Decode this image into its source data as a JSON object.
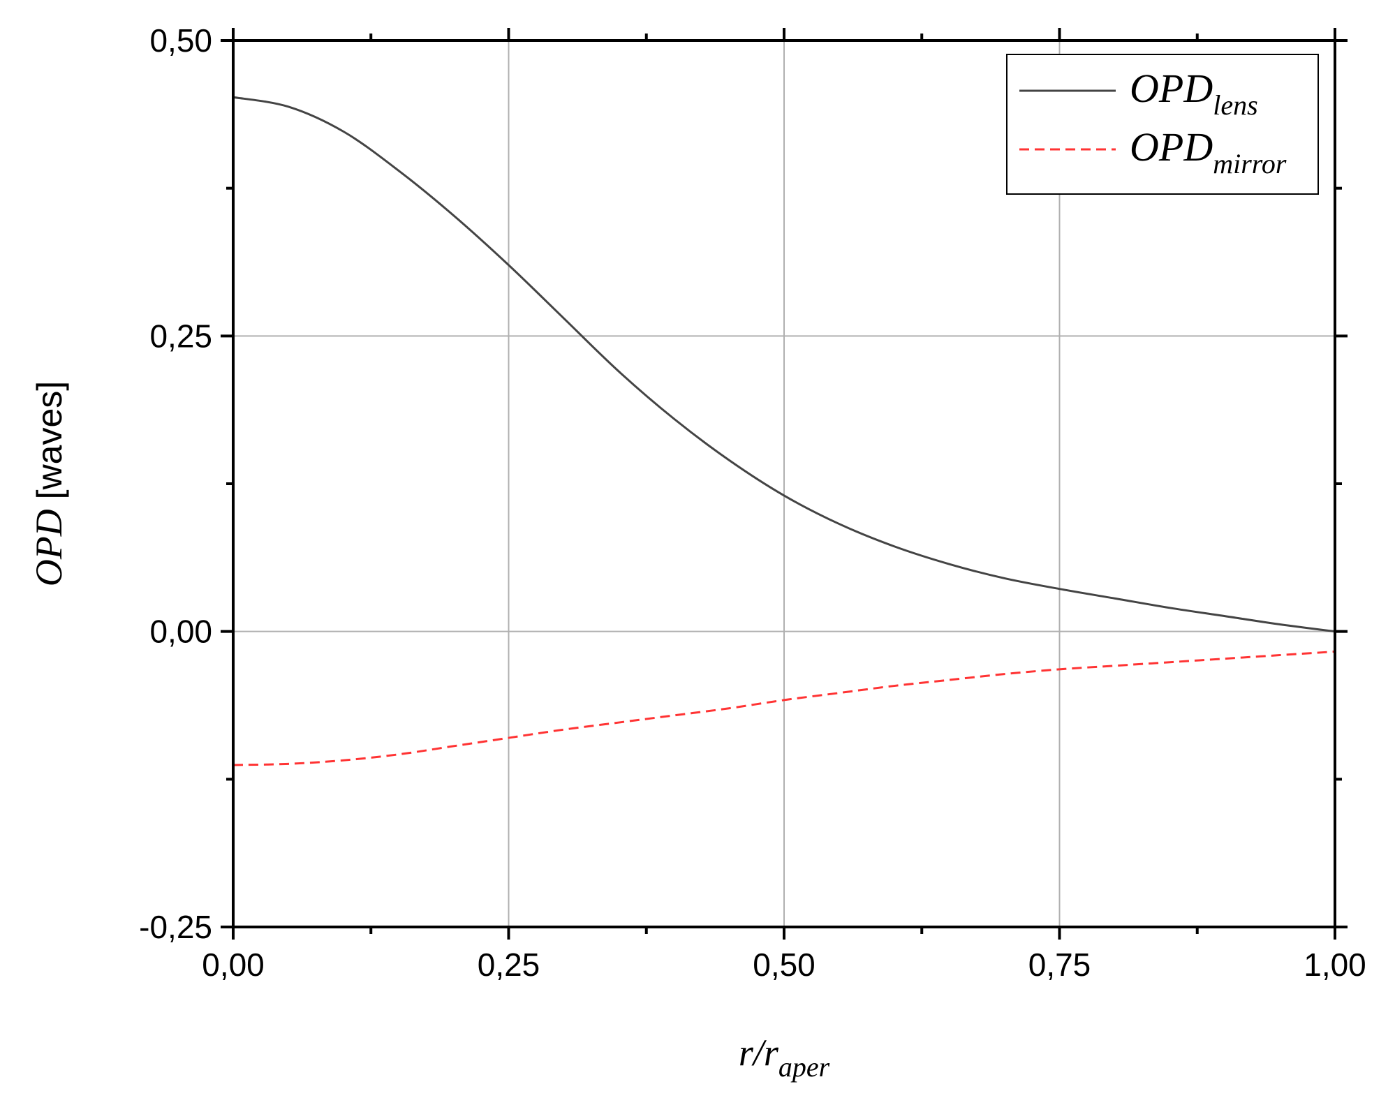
{
  "chart_data": {
    "type": "line",
    "xlabel": {
      "main": "r/r",
      "sub": "aper"
    },
    "ylabel": {
      "italic": "OPD",
      "plain": " [waves]"
    },
    "xlim": [
      0,
      1
    ],
    "ylim": [
      -0.25,
      0.5
    ],
    "x_ticks": [
      "0,00",
      "0,25",
      "0,50",
      "0,75",
      "1,00"
    ],
    "y_ticks": [
      "-0,25",
      "0,00",
      "0,25",
      "0,50"
    ],
    "x_tick_values": [
      0,
      0.25,
      0.5,
      0.75,
      1
    ],
    "y_tick_values": [
      -0.25,
      0,
      0.25,
      0.5
    ],
    "grid": true,
    "legend_position": "top-right",
    "series": [
      {
        "name": {
          "main": "OPD",
          "sub": "lens"
        },
        "color": "#444444",
        "dash": "solid",
        "x": [
          0,
          0.05,
          0.1,
          0.15,
          0.2,
          0.25,
          0.3,
          0.35,
          0.4,
          0.45,
          0.5,
          0.55,
          0.6,
          0.65,
          0.7,
          0.75,
          0.8,
          0.85,
          0.9,
          0.95,
          1.0
        ],
        "y": [
          0.452,
          0.444,
          0.423,
          0.39,
          0.352,
          0.31,
          0.265,
          0.22,
          0.18,
          0.145,
          0.115,
          0.091,
          0.072,
          0.057,
          0.045,
          0.036,
          0.028,
          0.02,
          0.013,
          0.006,
          0.0
        ]
      },
      {
        "name": {
          "main": "OPD",
          "sub": "mirror"
        },
        "color": "#ff3333",
        "dash": "dashed",
        "x": [
          0,
          0.05,
          0.1,
          0.15,
          0.2,
          0.25,
          0.3,
          0.35,
          0.4,
          0.45,
          0.5,
          0.55,
          0.6,
          0.65,
          0.7,
          0.75,
          0.8,
          0.85,
          0.9,
          0.95,
          1.0
        ],
        "y": [
          -0.113,
          -0.112,
          -0.109,
          -0.104,
          -0.097,
          -0.09,
          -0.083,
          -0.077,
          -0.071,
          -0.065,
          -0.058,
          -0.052,
          -0.046,
          -0.041,
          -0.036,
          -0.032,
          -0.029,
          -0.026,
          -0.023,
          -0.02,
          -0.017
        ]
      }
    ]
  }
}
